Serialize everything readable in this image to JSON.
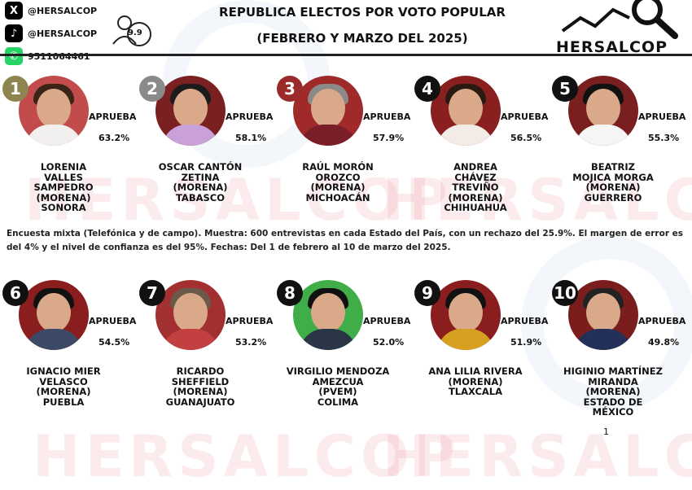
{
  "header": {
    "social": [
      {
        "icon": "x-icon",
        "text": "@HERSALCOP",
        "color": "#000000",
        "glyph": "X"
      },
      {
        "icon": "tiktok-icon",
        "text": "@HERSALCOP",
        "color": "#000000",
        "glyph": "♪"
      },
      {
        "icon": "whatsapp-icon",
        "text": "9511064461",
        "color": "#25d366",
        "glyph": "✆"
      }
    ],
    "rating_badge": "9.9",
    "title_line1": "REPUBLICA ELECTOS POR VOTO POPULAR",
    "title_line2": "(FEBRERO Y MARZO DEL 2025)",
    "logo_text": "HERSALCOP"
  },
  "watermark_text": "HERSALCOP",
  "approval_label": "APRUEBA",
  "candidates": [
    {
      "rank": "1",
      "pct": "63.2%",
      "name": [
        "LORENIA",
        "VALLES",
        "SAMPEDRO",
        "(MORENA)",
        "SONORA"
      ],
      "badge": "#8e8450",
      "bg": "#c24b4b",
      "body": "#f2f0ee",
      "hair": "#3a2416"
    },
    {
      "rank": "2",
      "pct": "58.1%",
      "name": [
        "OSCAR CANTÓN",
        "ZETINA",
        "(MORENA)",
        "TABASCO"
      ],
      "badge": "#8a8a8a",
      "bg": "#7a2020",
      "body": "#c9a0d8",
      "hair": "#1c1c1c"
    },
    {
      "rank": "3",
      "pct": "57.9%",
      "name": [
        "RAÚL MORÓN",
        "OROZCO",
        "(MORENA)",
        "MICHOACÁN"
      ],
      "badge": "#9b2b2b",
      "bg": "#a02a2a",
      "body": "#7a1e2a",
      "hair": "#8a8a8a"
    },
    {
      "rank": "4",
      "pct": "56.5%",
      "name": [
        "ANDREA",
        "CHÁVEZ",
        "TREVIÑO",
        "(MORENA)",
        "CHIHUAHUA"
      ],
      "badge": "#111111",
      "bg": "#8a1f1f",
      "body": "#f3ece6",
      "hair": "#2a1a12"
    },
    {
      "rank": "5",
      "pct": "55.3%",
      "name": [
        "BEATRIZ",
        "MOJICA MORGA",
        "(MORENA)",
        "GUERRERO"
      ],
      "badge": "#111111",
      "bg": "#7a1f1f",
      "body": "#f5f5f5",
      "hair": "#111111"
    },
    {
      "rank": "6",
      "pct": "54.5%",
      "name": [
        "IGNACIO MIER",
        "VELASCO",
        "(MORENA)",
        "PUEBLA"
      ],
      "badge": "#111111",
      "bg": "#8a1d1d",
      "body": "#3c4a66",
      "hair": "#111111"
    },
    {
      "rank": "7",
      "pct": "53.2%",
      "name": [
        "RICARDO",
        "SHEFFIELD",
        "(MORENA)",
        "GUANAJUATO"
      ],
      "badge": "#111111",
      "bg": "#a33030",
      "body": "#c24040",
      "hair": "#6b5a4a"
    },
    {
      "rank": "8",
      "pct": "52.0%",
      "name": [
        "VIRGILIO MENDOZA",
        "AMEZCUA",
        "(PVEM)",
        "COLIMA"
      ],
      "badge": "#111111",
      "bg": "#3fae49",
      "body": "#2b3548",
      "hair": "#111111"
    },
    {
      "rank": "9",
      "pct": "51.9%",
      "name": [
        "ANA LILIA RIVERA",
        "(MORENA)",
        "TLAXCALA"
      ],
      "badge": "#111111",
      "bg": "#8a1d1d",
      "body": "#d8a020",
      "hair": "#111111"
    },
    {
      "rank": "10",
      "pct": "49.8%",
      "name": [
        "HIGINIO MARTÍNEZ",
        "MIRANDA",
        "(MORENA)",
        "ESTADO DE",
        "MÉXICO"
      ],
      "badge": "#111111",
      "bg": "#7a1d1d",
      "body": "#23315a",
      "hair": "#222222"
    }
  ],
  "methodology_note": "Encuesta mixta (Telefónica y de campo). Muestra: 600 entrevistas en cada Estado del País, con un rechazo del 25.9%. El margen de error es del 4% y el nivel de confianza es del 95%. Fechas: Del 1 de febrero al 10 de marzo del 2025.",
  "page_number": "1"
}
